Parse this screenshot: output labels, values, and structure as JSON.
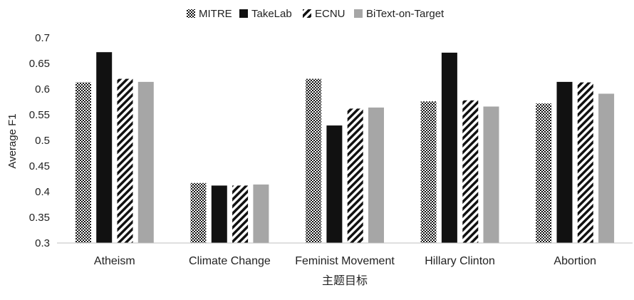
{
  "chart_data": {
    "type": "bar",
    "title": "",
    "xlabel": "主题目标",
    "ylabel": "Average F1",
    "ylim": [
      0.3,
      0.7
    ],
    "yticks": [
      "0.3",
      "0.35",
      "0.4",
      "0.45",
      "0.5",
      "0.55",
      "0.6",
      "0.65",
      "0.7"
    ],
    "categories": [
      "Atheism",
      "Climate Change",
      "Feminist Movement",
      "Hillary Clinton",
      "Abortion"
    ],
    "legend_position": "top",
    "grid": false,
    "series": [
      {
        "name": "MITRE",
        "pattern": "checker",
        "color": "#111111",
        "values": [
          0.613,
          0.417,
          0.62,
          0.576,
          0.572
        ]
      },
      {
        "name": "TakeLab",
        "pattern": "solid",
        "color": "#111111",
        "values": [
          0.672,
          0.412,
          0.529,
          0.671,
          0.614
        ]
      },
      {
        "name": "ECNU",
        "pattern": "diagonal",
        "color": "#111111",
        "values": [
          0.62,
          0.412,
          0.562,
          0.578,
          0.613
        ]
      },
      {
        "name": "BiText-on-Target",
        "pattern": "solid",
        "color": "#a6a6a6",
        "values": [
          0.614,
          0.414,
          0.564,
          0.566,
          0.591
        ]
      }
    ]
  }
}
